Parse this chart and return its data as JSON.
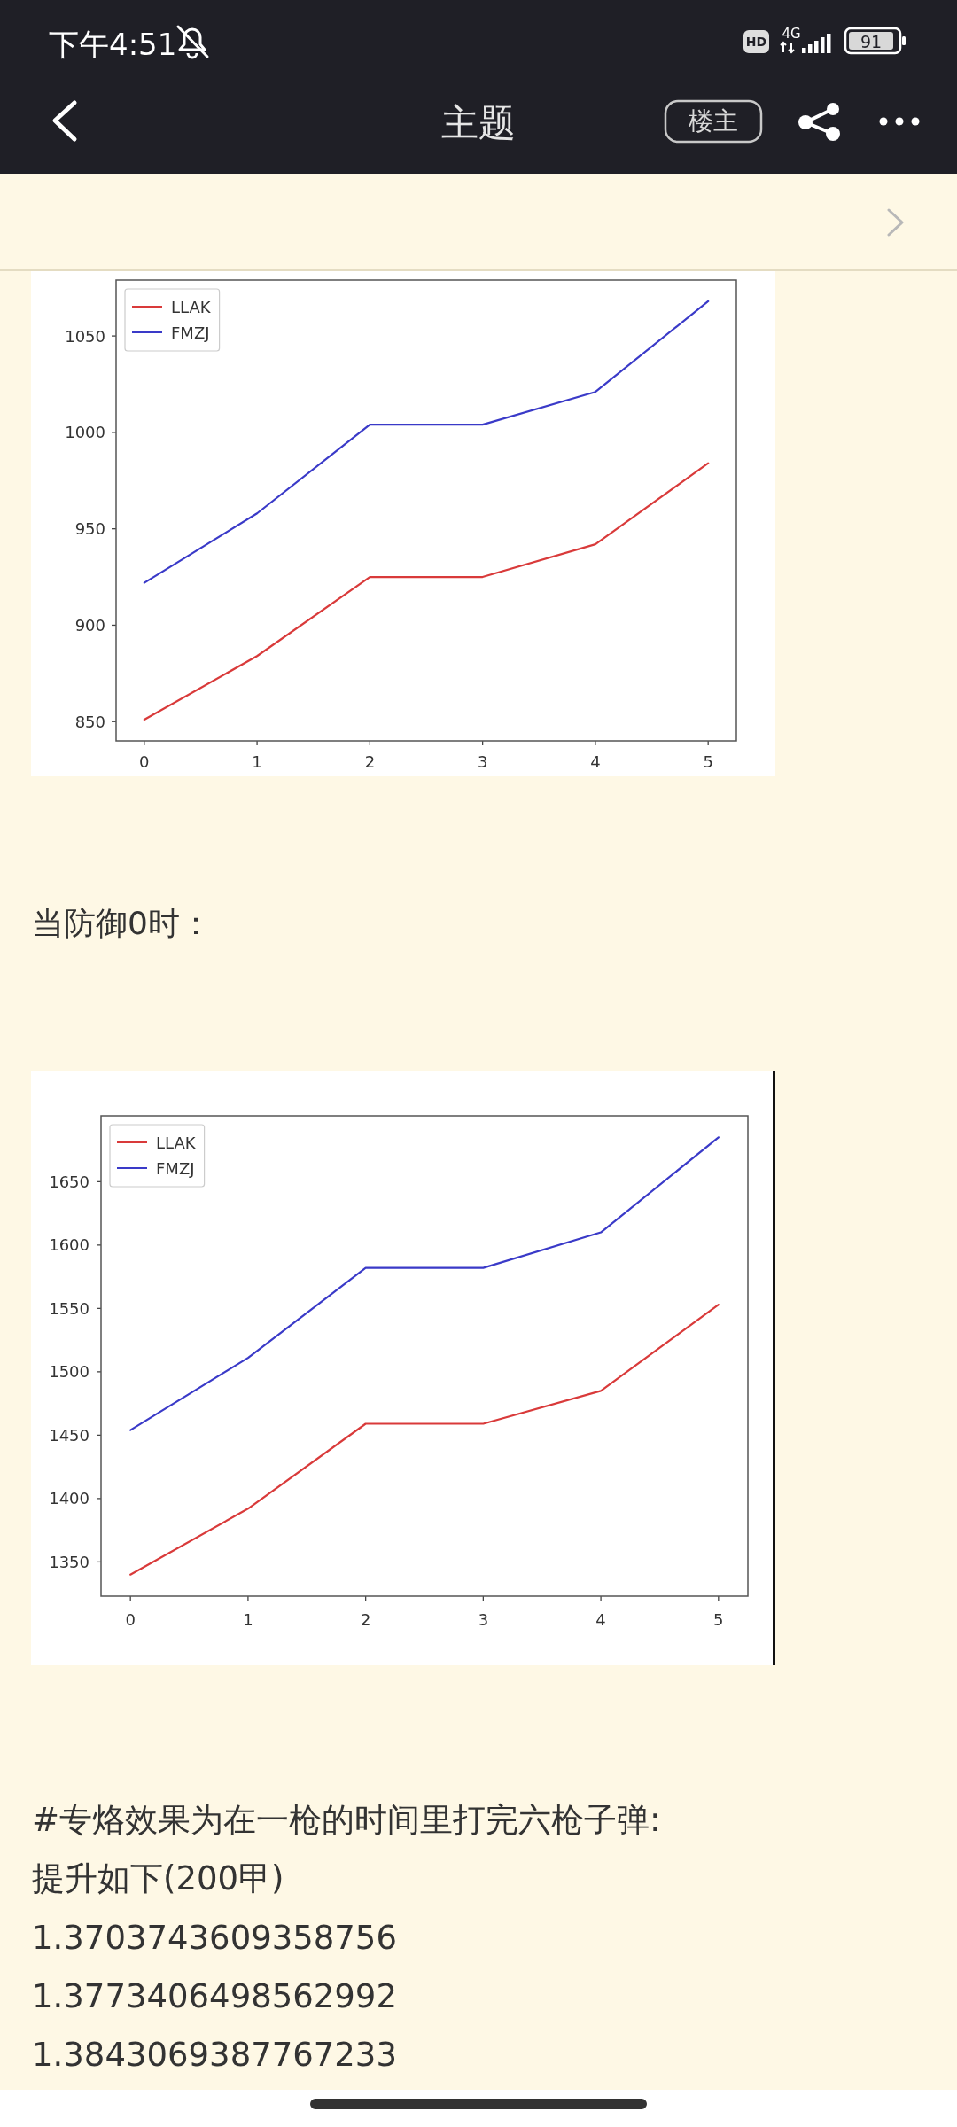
{
  "chart_data": [
    {
      "type": "line",
      "x": [
        0,
        1,
        2,
        3,
        4,
        5
      ],
      "series": [
        {
          "name": "LLAK",
          "color": "#d93a3a",
          "values": [
            851,
            884,
            925,
            925,
            942,
            984
          ]
        },
        {
          "name": "FMZJ",
          "color": "#3a3ac8",
          "values": [
            922,
            958,
            1004,
            1004,
            1021,
            1068
          ]
        }
      ],
      "xlim": [
        -0.25,
        5.25
      ],
      "ylim": [
        840,
        1079
      ],
      "xticks": [
        0,
        1,
        2,
        3,
        4,
        5
      ],
      "yticks": [
        850,
        900,
        950,
        1000,
        1050
      ],
      "legend": "top left",
      "annotations": [
        "下午4:51",
        "HD",
        "4G",
        "91",
        "主题",
        "楼主"
      ]
    },
    {
      "type": "line",
      "title": "当防御0时：",
      "x": [
        0,
        1,
        2,
        3,
        4,
        5
      ],
      "series": [
        {
          "name": "LLAK",
          "color": "#d93a3a",
          "values": [
            1340,
            1392,
            1459,
            1459,
            1485,
            1553
          ]
        },
        {
          "name": "FMZJ",
          "color": "#3a3ac8",
          "values": [
            1454,
            1511,
            1582,
            1582,
            1610,
            1685
          ]
        }
      ],
      "xlim": [
        -0.25,
        5.25
      ],
      "ylim": [
        1323,
        1702
      ],
      "xticks": [
        0,
        1,
        2,
        3,
        4,
        5
      ],
      "yticks": [
        1350,
        1400,
        1450,
        1500,
        1550,
        1600,
        1650
      ],
      "legend": "top left",
      "annotations": [
        "#专烙效果为在一枪的时间里打完六枪子弹:",
        "提升如下(200甲)",
        "1.3703743609358756",
        "1.3773406498562992",
        "1.3843069387767233"
      ]
    }
  ]
}
